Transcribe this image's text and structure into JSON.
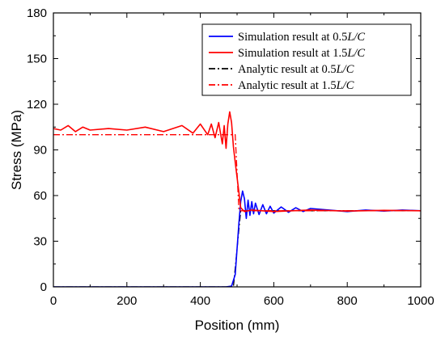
{
  "chart_data": {
    "type": "line",
    "xlabel": "Position (mm)",
    "ylabel": "Stress (MPa)",
    "xlim": [
      0,
      1000
    ],
    "ylim": [
      0,
      180
    ],
    "xticks": [
      0,
      200,
      400,
      600,
      800,
      1000
    ],
    "yticks": [
      0,
      30,
      60,
      90,
      120,
      150,
      180
    ],
    "grid": false,
    "legend_position": "top-right",
    "series": [
      {
        "name_parts": [
          "Simulation result at 0.5",
          "L/C"
        ],
        "color": "#0000ff",
        "dash": "solid",
        "x": [
          0,
          470,
          485,
          495,
          500,
          505,
          510,
          515,
          520,
          525,
          530,
          535,
          540,
          545,
          550,
          560,
          570,
          580,
          590,
          600,
          620,
          640,
          660,
          680,
          700,
          750,
          800,
          850,
          900,
          950,
          1000
        ],
        "y": [
          0,
          0,
          0.5,
          8,
          25,
          42,
          56,
          63,
          58,
          45,
          57,
          47,
          56,
          48,
          55,
          47.5,
          54,
          48,
          53,
          48.5,
          52.5,
          49,
          52,
          49.5,
          51.5,
          50.5,
          49.5,
          50.5,
          49.8,
          50.5,
          50
        ]
      },
      {
        "name_parts": [
          "Simulation result at 1.5",
          "L/C"
        ],
        "color": "#ff0000",
        "dash": "solid",
        "x": [
          0,
          20,
          40,
          60,
          80,
          100,
          150,
          200,
          250,
          300,
          350,
          380,
          400,
          420,
          430,
          440,
          450,
          460,
          465,
          470,
          475,
          480,
          485,
          490,
          495,
          500,
          505,
          510,
          520,
          540,
          600,
          700,
          800,
          900,
          1000
        ],
        "y": [
          104,
          103,
          106,
          102,
          105,
          103,
          104,
          103,
          105,
          102,
          106,
          101,
          107,
          100,
          107,
          98,
          108,
          94,
          106,
          91,
          107,
          115,
          108,
          92,
          82,
          72,
          62,
          52,
          49.5,
          50.5,
          49.5,
          50.5,
          49.8,
          50.3,
          50
        ]
      },
      {
        "name_parts": [
          "Analytic result at 0.5",
          "L/C"
        ],
        "color": "#000000",
        "dash": "dash-dot",
        "x": [
          0,
          490,
          490,
          510,
          510,
          1000
        ],
        "y": [
          0,
          0,
          0,
          50,
          50,
          50
        ]
      },
      {
        "name_parts": [
          "Analytic result at 1.5",
          "L/C"
        ],
        "color": "#ff0000",
        "dash": "dash-dot",
        "x": [
          0,
          495,
          495,
          505,
          505,
          1000
        ],
        "y": [
          100,
          100,
          100,
          50,
          50,
          50
        ]
      }
    ]
  }
}
